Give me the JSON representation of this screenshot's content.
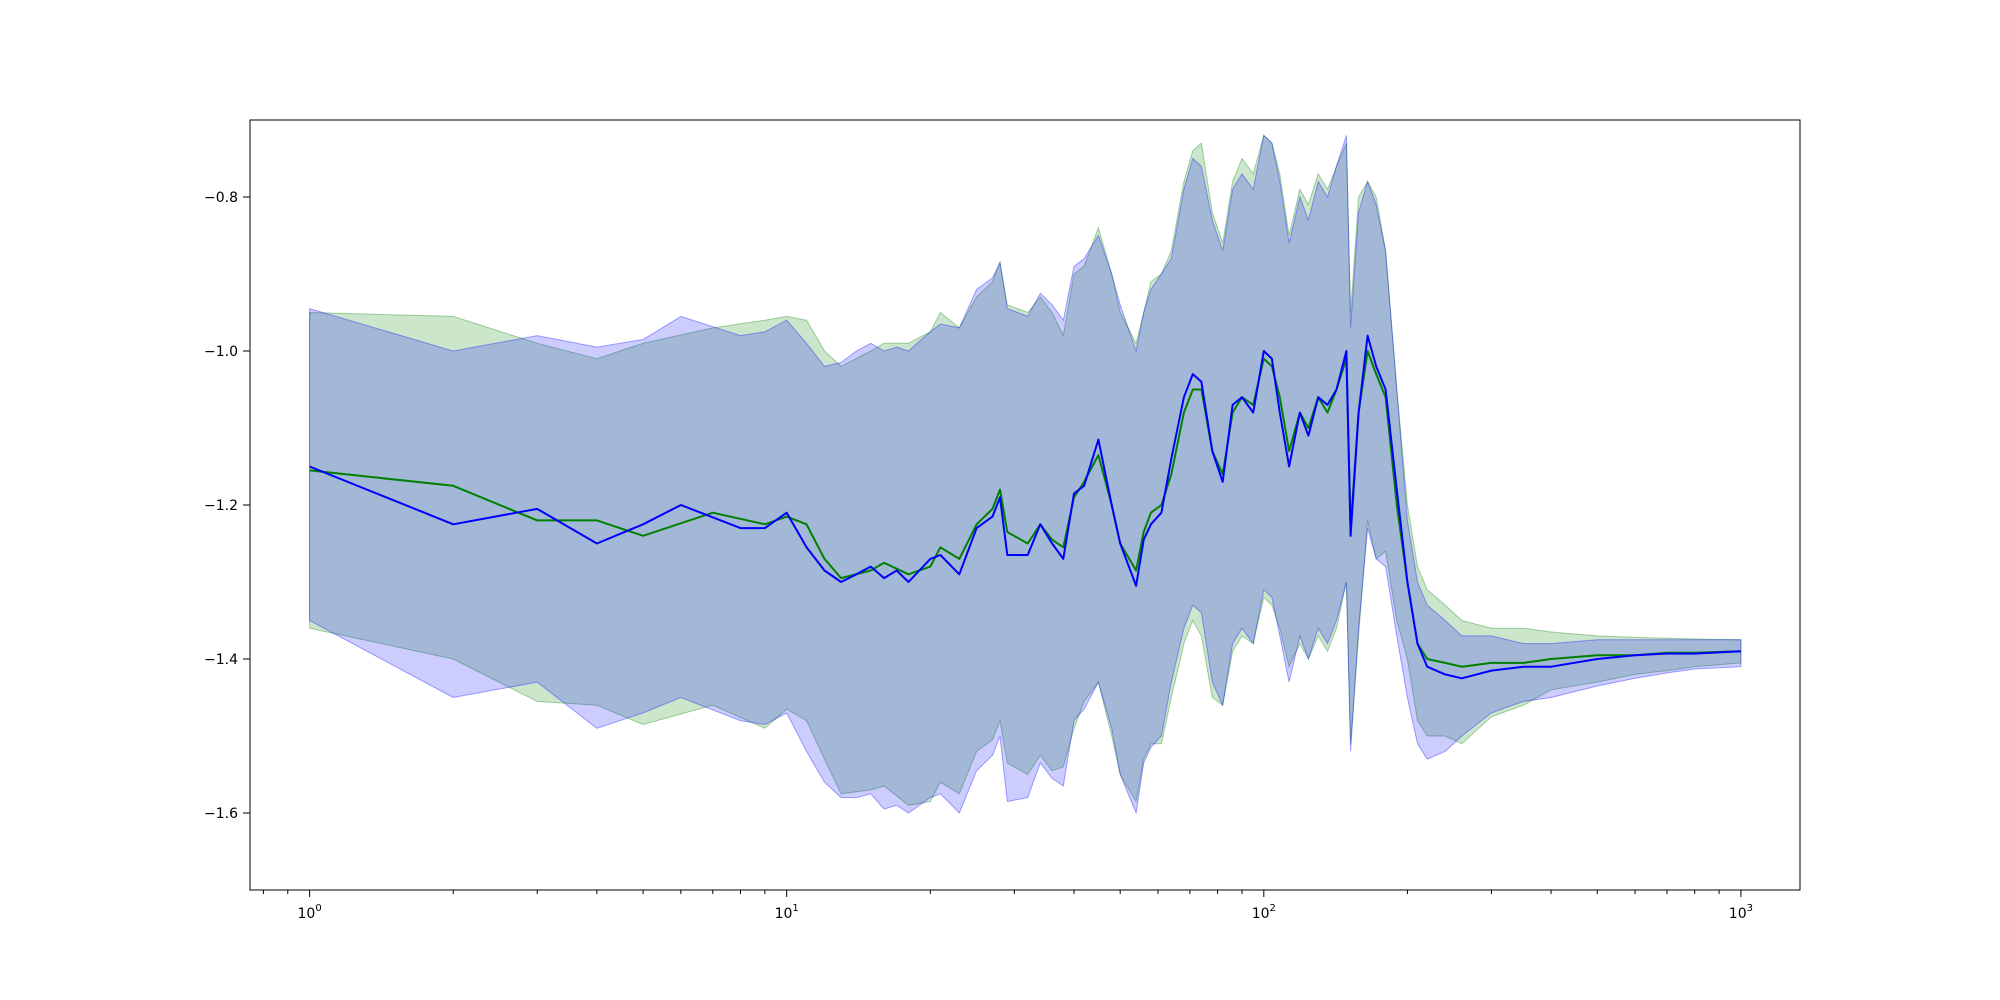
{
  "chart_data": {
    "type": "line",
    "xscale": "log",
    "xlim": [
      0.75,
      1330
    ],
    "ylim": [
      -1.7,
      -0.7
    ],
    "grid": false,
    "legend": "none",
    "x_ticks": [
      {
        "base": "10",
        "exp": "0",
        "value": 1
      },
      {
        "base": "10",
        "exp": "1",
        "value": 10
      },
      {
        "base": "10",
        "exp": "2",
        "value": 100
      },
      {
        "base": "10",
        "exp": "3",
        "value": 1000
      }
    ],
    "y_ticks": [
      {
        "label": "−0.8",
        "value": -0.8
      },
      {
        "label": "−1.0",
        "value": -1.0
      },
      {
        "label": "−1.2",
        "value": -1.2
      },
      {
        "label": "−1.4",
        "value": -1.4
      },
      {
        "label": "−1.6",
        "value": -1.6
      }
    ],
    "series": [
      {
        "color": "#008000",
        "band_color": "#008000",
        "band_opacity": 0.2,
        "x": [
          1,
          2,
          3,
          4,
          5,
          7,
          9,
          10,
          11,
          12,
          13,
          15,
          16,
          18,
          20,
          21,
          23,
          25,
          27,
          28,
          29,
          32,
          34,
          36,
          38,
          40,
          42,
          45,
          48,
          50,
          54,
          56,
          58,
          61,
          64,
          68,
          71,
          74,
          78,
          82,
          86,
          90,
          95,
          100,
          104,
          108,
          113,
          119,
          124,
          130,
          136,
          142,
          149,
          152,
          158,
          165,
          172,
          180,
          190,
          200,
          210,
          220,
          240,
          260,
          300,
          350,
          400,
          500,
          600,
          700,
          800,
          1000
        ],
        "y": [
          -1.155,
          -1.175,
          -1.22,
          -1.22,
          -1.24,
          -1.21,
          -1.225,
          -1.215,
          -1.225,
          -1.27,
          -1.295,
          -1.285,
          -1.275,
          -1.29,
          -1.28,
          -1.255,
          -1.27,
          -1.225,
          -1.205,
          -1.18,
          -1.235,
          -1.25,
          -1.225,
          -1.245,
          -1.255,
          -1.19,
          -1.17,
          -1.135,
          -1.2,
          -1.25,
          -1.285,
          -1.235,
          -1.21,
          -1.2,
          -1.16,
          -1.08,
          -1.05,
          -1.05,
          -1.13,
          -1.16,
          -1.08,
          -1.06,
          -1.07,
          -1.01,
          -1.02,
          -1.06,
          -1.13,
          -1.08,
          -1.1,
          -1.06,
          -1.08,
          -1.05,
          -1.01,
          -1.23,
          -1.08,
          -1.0,
          -1.03,
          -1.06,
          -1.2,
          -1.3,
          -1.38,
          -1.4,
          -1.405,
          -1.41,
          -1.405,
          -1.405,
          -1.4,
          -1.395,
          -1.395,
          -1.392,
          -1.392,
          -1.39
        ],
        "upper": [
          -0.95,
          -0.955,
          -0.99,
          -1.01,
          -0.99,
          -0.97,
          -0.96,
          -0.955,
          -0.96,
          -1.0,
          -1.02,
          -1.0,
          -0.99,
          -0.99,
          -0.975,
          -0.95,
          -0.97,
          -0.93,
          -0.91,
          -0.885,
          -0.94,
          -0.95,
          -0.93,
          -0.95,
          -0.98,
          -0.9,
          -0.89,
          -0.84,
          -0.9,
          -0.95,
          -0.99,
          -0.95,
          -0.91,
          -0.9,
          -0.87,
          -0.78,
          -0.74,
          -0.73,
          -0.82,
          -0.86,
          -0.78,
          -0.75,
          -0.77,
          -0.72,
          -0.73,
          -0.77,
          -0.85,
          -0.79,
          -0.81,
          -0.77,
          -0.79,
          -0.76,
          -0.73,
          -0.95,
          -0.8,
          -0.78,
          -0.8,
          -0.87,
          -1.05,
          -1.2,
          -1.28,
          -1.31,
          -1.33,
          -1.35,
          -1.36,
          -1.36,
          -1.365,
          -1.37,
          -1.372,
          -1.373,
          -1.374,
          -1.375
        ],
        "lower": [
          -1.36,
          -1.4,
          -1.455,
          -1.46,
          -1.485,
          -1.46,
          -1.49,
          -1.465,
          -1.48,
          -1.53,
          -1.575,
          -1.57,
          -1.565,
          -1.59,
          -1.585,
          -1.56,
          -1.575,
          -1.52,
          -1.505,
          -1.48,
          -1.535,
          -1.55,
          -1.525,
          -1.545,
          -1.54,
          -1.49,
          -1.455,
          -1.43,
          -1.5,
          -1.55,
          -1.585,
          -1.53,
          -1.51,
          -1.51,
          -1.45,
          -1.38,
          -1.35,
          -1.37,
          -1.45,
          -1.46,
          -1.39,
          -1.37,
          -1.38,
          -1.32,
          -1.33,
          -1.36,
          -1.41,
          -1.38,
          -1.4,
          -1.37,
          -1.39,
          -1.36,
          -1.3,
          -1.51,
          -1.37,
          -1.22,
          -1.27,
          -1.26,
          -1.35,
          -1.4,
          -1.48,
          -1.5,
          -1.5,
          -1.51,
          -1.475,
          -1.46,
          -1.44,
          -1.43,
          -1.42,
          -1.415,
          -1.41,
          -1.405
        ]
      },
      {
        "color": "#0000ff",
        "band_color": "#0000ff",
        "band_opacity": 0.2,
        "x": [
          1,
          2,
          3,
          4,
          5,
          6,
          8,
          9,
          10,
          11,
          12,
          13,
          14,
          15,
          16,
          17,
          18,
          20,
          21,
          23,
          25,
          27,
          28,
          29,
          32,
          34,
          36,
          38,
          40,
          42,
          45,
          48,
          50,
          54,
          56,
          58,
          61,
          64,
          68,
          71,
          74,
          78,
          82,
          86,
          90,
          95,
          100,
          104,
          108,
          113,
          119,
          124,
          130,
          136,
          142,
          149,
          152,
          158,
          165,
          172,
          180,
          190,
          200,
          210,
          220,
          240,
          260,
          300,
          350,
          400,
          500,
          600,
          700,
          800,
          1000
        ],
        "y": [
          -1.15,
          -1.225,
          -1.205,
          -1.25,
          -1.225,
          -1.2,
          -1.23,
          -1.23,
          -1.21,
          -1.255,
          -1.285,
          -1.3,
          -1.29,
          -1.28,
          -1.295,
          -1.285,
          -1.3,
          -1.27,
          -1.265,
          -1.29,
          -1.23,
          -1.215,
          -1.19,
          -1.265,
          -1.265,
          -1.225,
          -1.25,
          -1.27,
          -1.185,
          -1.175,
          -1.115,
          -1.2,
          -1.25,
          -1.305,
          -1.245,
          -1.225,
          -1.21,
          -1.14,
          -1.06,
          -1.03,
          -1.04,
          -1.13,
          -1.17,
          -1.07,
          -1.06,
          -1.08,
          -1.0,
          -1.01,
          -1.08,
          -1.15,
          -1.08,
          -1.11,
          -1.06,
          -1.07,
          -1.05,
          -1.0,
          -1.24,
          -1.08,
          -0.98,
          -1.02,
          -1.05,
          -1.18,
          -1.3,
          -1.38,
          -1.41,
          -1.42,
          -1.425,
          -1.415,
          -1.41,
          -1.41,
          -1.4,
          -1.395,
          -1.393,
          -1.393,
          -1.39
        ],
        "upper": [
          -0.945,
          -1.0,
          -0.98,
          -0.995,
          -0.985,
          -0.955,
          -0.98,
          -0.975,
          -0.96,
          -0.99,
          -1.02,
          -1.015,
          -1.0,
          -0.99,
          -1.0,
          -0.995,
          -1.0,
          -0.975,
          -0.965,
          -0.97,
          -0.92,
          -0.905,
          -0.885,
          -0.945,
          -0.955,
          -0.925,
          -0.94,
          -0.96,
          -0.89,
          -0.88,
          -0.85,
          -0.9,
          -0.94,
          -1.0,
          -0.95,
          -0.92,
          -0.9,
          -0.88,
          -0.79,
          -0.75,
          -0.76,
          -0.83,
          -0.87,
          -0.79,
          -0.77,
          -0.79,
          -0.72,
          -0.73,
          -0.78,
          -0.86,
          -0.8,
          -0.83,
          -0.78,
          -0.8,
          -0.76,
          -0.72,
          -0.97,
          -0.82,
          -0.78,
          -0.81,
          -0.87,
          -1.05,
          -1.22,
          -1.3,
          -1.33,
          -1.35,
          -1.37,
          -1.37,
          -1.38,
          -1.38,
          -1.375,
          -1.375,
          -1.375,
          -1.375,
          -1.375
        ],
        "lower": [
          -1.35,
          -1.45,
          -1.43,
          -1.49,
          -1.47,
          -1.45,
          -1.48,
          -1.485,
          -1.47,
          -1.52,
          -1.56,
          -1.58,
          -1.58,
          -1.575,
          -1.595,
          -1.59,
          -1.6,
          -1.58,
          -1.575,
          -1.6,
          -1.545,
          -1.525,
          -1.5,
          -1.585,
          -1.58,
          -1.535,
          -1.555,
          -1.565,
          -1.48,
          -1.465,
          -1.43,
          -1.49,
          -1.55,
          -1.6,
          -1.535,
          -1.515,
          -1.5,
          -1.43,
          -1.36,
          -1.33,
          -1.34,
          -1.43,
          -1.46,
          -1.38,
          -1.36,
          -1.38,
          -1.31,
          -1.32,
          -1.37,
          -1.43,
          -1.37,
          -1.4,
          -1.36,
          -1.38,
          -1.35,
          -1.3,
          -1.52,
          -1.36,
          -1.23,
          -1.27,
          -1.28,
          -1.37,
          -1.45,
          -1.51,
          -1.53,
          -1.52,
          -1.5,
          -1.47,
          -1.455,
          -1.45,
          -1.435,
          -1.425,
          -1.418,
          -1.413,
          -1.41
        ]
      }
    ]
  }
}
